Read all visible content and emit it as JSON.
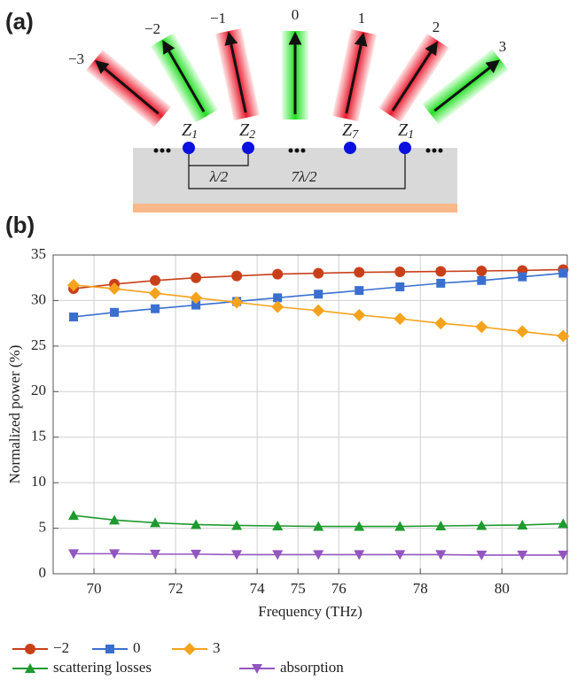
{
  "panel_a": {
    "label": "(a)",
    "orders": [
      "−3",
      "−2",
      "−1",
      "0",
      "1",
      "2",
      "3"
    ],
    "impedances": [
      {
        "base": "Z",
        "sub": "1"
      },
      {
        "base": "Z",
        "sub": "2"
      },
      {
        "base": "Z",
        "sub": "7"
      },
      {
        "base": "Z",
        "sub": "1"
      }
    ],
    "spacings": [
      "λ/2",
      "7λ/2"
    ]
  },
  "chart_data": {
    "type": "line",
    "panel_label": "(b)",
    "xlabel": "Frequency (THz)",
    "ylabel": "Normalized power (%)",
    "x": [
      69.5,
      70.5,
      71.5,
      72.5,
      73.5,
      74.5,
      75.5,
      76.5,
      77.5,
      78.5,
      79.5,
      80.5,
      81.5
    ],
    "series": [
      {
        "name": "−2",
        "color": "#c8401a",
        "marker": "circle",
        "values": [
          31.3,
          31.8,
          32.2,
          32.5,
          32.7,
          32.9,
          33.0,
          33.1,
          33.15,
          33.2,
          33.25,
          33.3,
          33.4
        ]
      },
      {
        "name": "0",
        "color": "#3a6fd0",
        "marker": "square",
        "values": [
          28.2,
          28.7,
          29.1,
          29.5,
          29.9,
          30.3,
          30.7,
          31.1,
          31.5,
          31.9,
          32.2,
          32.6,
          33.0
        ]
      },
      {
        "name": "3",
        "color": "#f5a31c",
        "marker": "diamond",
        "values": [
          31.7,
          31.3,
          30.8,
          30.3,
          29.8,
          29.3,
          28.9,
          28.4,
          28.0,
          27.5,
          27.1,
          26.6,
          26.1
        ]
      },
      {
        "name": "scattering losses",
        "color": "#1e9a2e",
        "marker": "triangle",
        "values": [
          6.4,
          5.9,
          5.6,
          5.4,
          5.3,
          5.25,
          5.2,
          5.2,
          5.2,
          5.25,
          5.3,
          5.35,
          5.5
        ]
      },
      {
        "name": "absorption",
        "color": "#9356c0",
        "marker": "triangle-down",
        "values": [
          2.2,
          2.2,
          2.15,
          2.15,
          2.1,
          2.1,
          2.1,
          2.1,
          2.1,
          2.1,
          2.05,
          2.05,
          2.05
        ]
      }
    ],
    "xlim": [
      69,
      81.6
    ],
    "ylim": [
      0,
      35
    ],
    "xticks": [
      70,
      72,
      74,
      75,
      76,
      78,
      80
    ],
    "yticks": [
      0,
      5,
      10,
      15,
      20,
      25,
      30,
      35
    ],
    "grid": true
  }
}
